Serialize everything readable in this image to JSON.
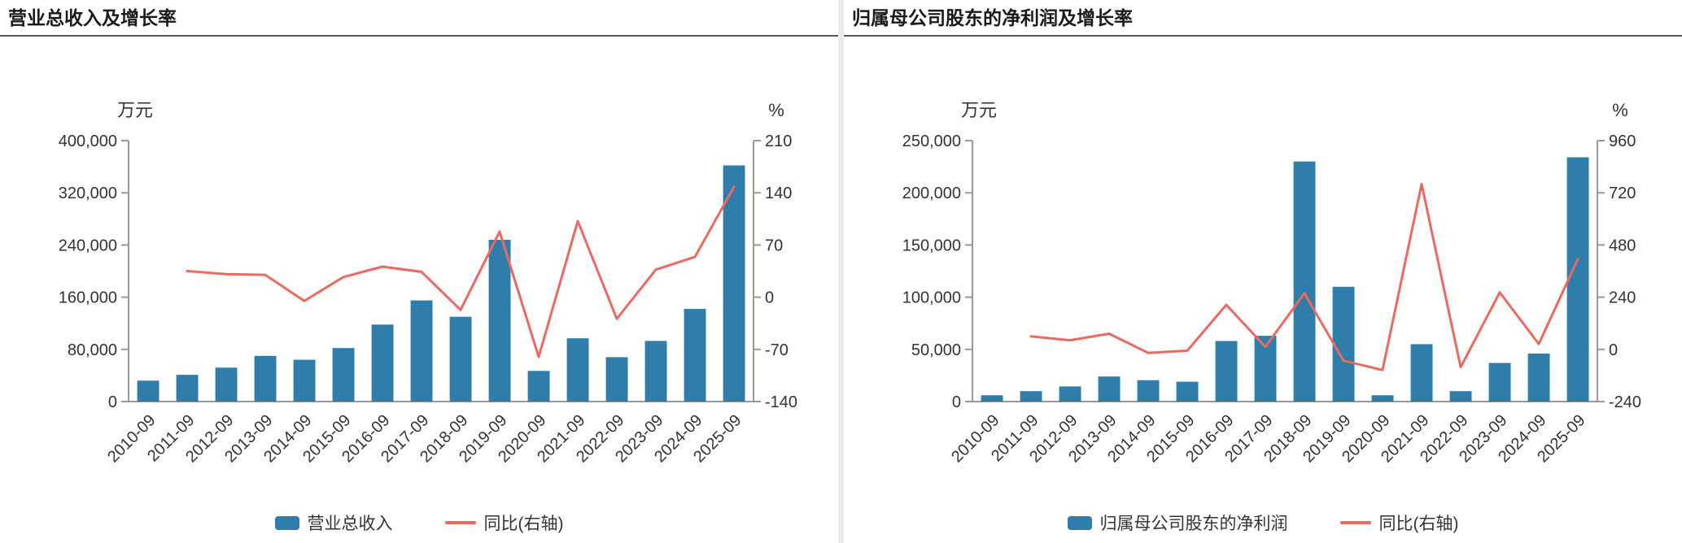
{
  "colors": {
    "bar": "#2e7dab",
    "line": "#ea6a5f",
    "axis": "#999999",
    "text": "#333333"
  },
  "chart_data": [
    {
      "type": "bar+line",
      "title": "营业总收入及增长率",
      "left_axis_label": "万元",
      "right_axis_label": "%",
      "categories": [
        "2010-09",
        "2011-09",
        "2012-09",
        "2013-09",
        "2014-09",
        "2015-09",
        "2016-09",
        "2017-09",
        "2018-09",
        "2019-09",
        "2020-09",
        "2021-09",
        "2022-09",
        "2023-09",
        "2024-09",
        "2025-09"
      ],
      "series": [
        {
          "name": "营业总收入",
          "type": "bar",
          "axis": "left",
          "values": [
            32000,
            41000,
            52000,
            70000,
            64000,
            82000,
            118000,
            155000,
            130000,
            248000,
            47000,
            97000,
            68000,
            93000,
            142000,
            362000
          ]
        },
        {
          "name": "同比(右轴)",
          "type": "line",
          "axis": "right",
          "values": [
            null,
            35,
            31,
            30,
            -5,
            27,
            41,
            34,
            -17,
            88,
            -80,
            102,
            -29,
            37,
            54,
            148
          ]
        }
      ],
      "left_axis": {
        "min": 0,
        "max": 400000,
        "ticks": [
          0,
          80000,
          160000,
          240000,
          320000,
          400000
        ]
      },
      "right_axis": {
        "min": -140,
        "max": 210,
        "ticks": [
          -140,
          -70,
          0,
          70,
          140,
          210
        ]
      },
      "legend_position": "bottom",
      "grid": false
    },
    {
      "type": "bar+line",
      "title": "归属母公司股东的净利润及增长率",
      "left_axis_label": "万元",
      "right_axis_label": "%",
      "categories": [
        "2010-09",
        "2011-09",
        "2012-09",
        "2013-09",
        "2014-09",
        "2015-09",
        "2016-09",
        "2017-09",
        "2018-09",
        "2019-09",
        "2020-09",
        "2021-09",
        "2022-09",
        "2023-09",
        "2024-09",
        "2025-09"
      ],
      "series": [
        {
          "name": "归属母公司股东的净利润",
          "type": "bar",
          "axis": "left",
          "values": [
            6000,
            10000,
            14500,
            24000,
            20500,
            19000,
            58000,
            63000,
            230000,
            110000,
            6000,
            55000,
            10000,
            37000,
            46000,
            234000
          ]
        },
        {
          "name": "同比(右轴)",
          "type": "line",
          "axis": "right",
          "values": [
            null,
            60,
            42,
            72,
            -16,
            -6,
            205,
            12,
            258,
            -52,
            -95,
            760,
            -82,
            262,
            25,
            415
          ]
        }
      ],
      "left_axis": {
        "min": 0,
        "max": 250000,
        "ticks": [
          0,
          50000,
          100000,
          150000,
          200000,
          250000
        ]
      },
      "right_axis": {
        "min": -240,
        "max": 960,
        "ticks": [
          -240,
          0,
          240,
          480,
          720,
          960
        ]
      },
      "legend_position": "bottom",
      "grid": false
    }
  ]
}
